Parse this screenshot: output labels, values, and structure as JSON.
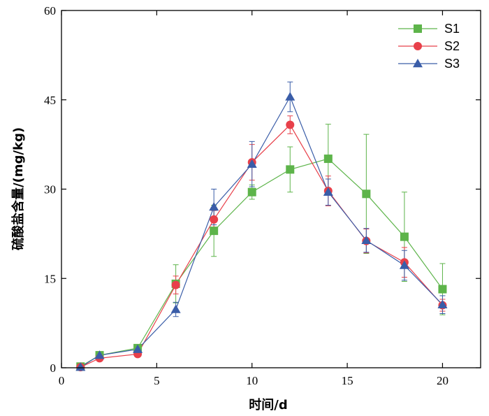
{
  "chart_data": {
    "type": "line",
    "xlabel": "时间/d",
    "ylabel": "硫酸盐含量/(mg/kg)",
    "xlim": [
      0,
      22
    ],
    "ylim": [
      0,
      60
    ],
    "xticks": [
      0,
      5,
      10,
      15,
      20
    ],
    "yticks": [
      0,
      15,
      30,
      45,
      60
    ],
    "grid": false,
    "legend_position": "top-right",
    "x": [
      1,
      2,
      4,
      6,
      8,
      10,
      12,
      14,
      16,
      18,
      20
    ],
    "series": [
      {
        "name": "S1",
        "color": "#5DB44A",
        "marker": "square",
        "values": [
          0.2,
          2.1,
          3.3,
          14.1,
          23.0,
          29.5,
          33.3,
          35.1,
          29.2,
          22.0,
          13.2
        ],
        "errors": [
          0.3,
          0.5,
          0.5,
          3.2,
          4.3,
          1.2,
          3.8,
          5.8,
          10.0,
          7.5,
          4.3
        ]
      },
      {
        "name": "S2",
        "color": "#E8404A",
        "marker": "circle",
        "values": [
          0.1,
          1.6,
          2.3,
          13.9,
          24.9,
          34.5,
          40.8,
          29.7,
          21.3,
          17.7,
          10.5
        ],
        "errors": [
          0.3,
          0.4,
          0.4,
          1.5,
          1.5,
          3.0,
          1.5,
          2.5,
          2.0,
          2.5,
          1.0
        ]
      },
      {
        "name": "S3",
        "color": "#3A5DA8",
        "marker": "triangle",
        "values": [
          0.1,
          2.1,
          3.1,
          9.8,
          27.0,
          34.2,
          45.5,
          29.5,
          21.4,
          17.2,
          10.6
        ],
        "errors": [
          0.3,
          0.4,
          0.4,
          1.2,
          3.0,
          3.8,
          2.5,
          2.2,
          2.0,
          2.5,
          1.5
        ]
      }
    ]
  }
}
